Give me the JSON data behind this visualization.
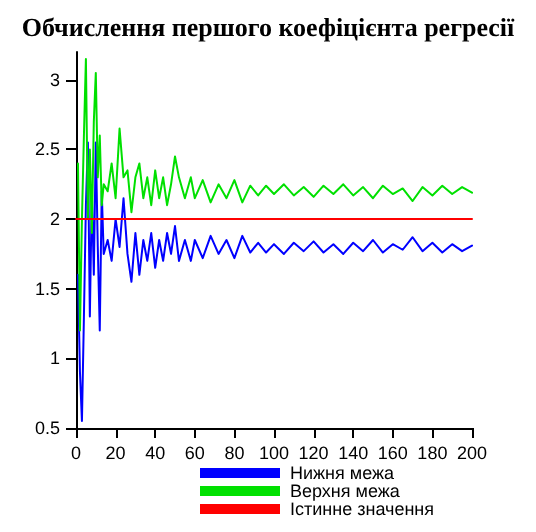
{
  "chart_data": {
    "type": "line",
    "title": "Обчислення першого коефіцієнта регресії",
    "xlim": [
      0,
      200
    ],
    "xticks": [
      0,
      20,
      40,
      60,
      80,
      100,
      120,
      140,
      160,
      180,
      200
    ],
    "ylim": [
      0.5,
      3.2
    ],
    "yticks": [
      0.5,
      1,
      1.5,
      2,
      2.5,
      3
    ],
    "grid": false,
    "legend": "bottom",
    "marker": "none",
    "line_style": "solid",
    "series": [
      {
        "name": "Нижня межа",
        "color": "#0000ff",
        "x": [
          1,
          2,
          3,
          4,
          5,
          6,
          7,
          8,
          9,
          10,
          11,
          12,
          13,
          14,
          16,
          18,
          20,
          22,
          24,
          26,
          28,
          30,
          32,
          34,
          36,
          38,
          40,
          42,
          44,
          46,
          48,
          50,
          52,
          55,
          58,
          60,
          64,
          68,
          72,
          76,
          80,
          84,
          88,
          92,
          96,
          100,
          105,
          110,
          115,
          120,
          125,
          130,
          135,
          140,
          145,
          150,
          155,
          160,
          165,
          170,
          175,
          180,
          185,
          190,
          195,
          200
        ],
        "values": [
          1.6,
          0.9,
          0.55,
          1.3,
          2.1,
          2.55,
          1.3,
          2.2,
          1.6,
          2.55,
          1.8,
          1.2,
          2.2,
          1.75,
          1.85,
          1.7,
          2.0,
          1.8,
          2.15,
          1.75,
          1.55,
          1.9,
          1.6,
          1.85,
          1.7,
          1.9,
          1.65,
          1.85,
          1.7,
          1.9,
          1.75,
          1.95,
          1.7,
          1.85,
          1.7,
          1.85,
          1.72,
          1.88,
          1.75,
          1.85,
          1.72,
          1.88,
          1.76,
          1.83,
          1.76,
          1.82,
          1.75,
          1.83,
          1.77,
          1.84,
          1.76,
          1.82,
          1.75,
          1.83,
          1.77,
          1.85,
          1.76,
          1.82,
          1.78,
          1.87,
          1.77,
          1.83,
          1.76,
          1.82,
          1.77,
          1.81
        ]
      },
      {
        "name": "Верхня межа",
        "color": "#00e000",
        "x": [
          1,
          2,
          3,
          4,
          5,
          6,
          7,
          8,
          9,
          10,
          11,
          12,
          13,
          14,
          16,
          18,
          20,
          22,
          24,
          26,
          28,
          30,
          32,
          34,
          36,
          38,
          40,
          42,
          44,
          46,
          48,
          50,
          52,
          55,
          58,
          60,
          64,
          68,
          72,
          76,
          80,
          84,
          88,
          92,
          96,
          100,
          105,
          110,
          115,
          120,
          125,
          130,
          135,
          140,
          145,
          150,
          155,
          160,
          165,
          170,
          175,
          180,
          185,
          190,
          195,
          200
        ],
        "values": [
          2.4,
          1.2,
          2.0,
          2.6,
          3.15,
          2.0,
          2.5,
          1.9,
          2.7,
          3.05,
          2.3,
          2.6,
          2.1,
          2.25,
          2.2,
          2.4,
          2.15,
          2.65,
          2.3,
          2.35,
          2.05,
          2.3,
          2.4,
          2.15,
          2.3,
          2.1,
          2.35,
          2.15,
          2.3,
          2.1,
          2.25,
          2.45,
          2.3,
          2.15,
          2.3,
          2.15,
          2.28,
          2.12,
          2.25,
          2.15,
          2.28,
          2.12,
          2.24,
          2.17,
          2.24,
          2.18,
          2.25,
          2.17,
          2.23,
          2.16,
          2.24,
          2.18,
          2.25,
          2.17,
          2.23,
          2.15,
          2.24,
          2.18,
          2.22,
          2.13,
          2.23,
          2.17,
          2.24,
          2.18,
          2.23,
          2.19
        ]
      },
      {
        "name": "Істинне значення",
        "color": "#ff0000",
        "x": [
          0,
          200
        ],
        "values": [
          2,
          2
        ]
      }
    ]
  }
}
